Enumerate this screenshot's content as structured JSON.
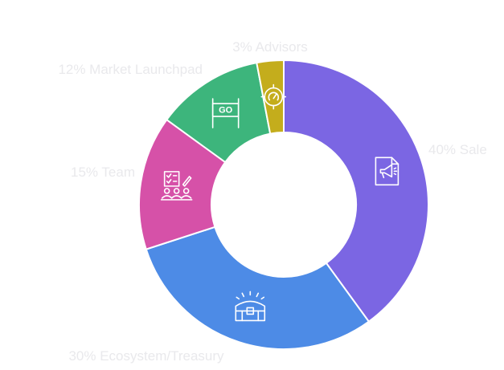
{
  "chart_data": {
    "type": "pie",
    "donut": true,
    "categories": [
      "Sale",
      "Ecosystem/Treasury",
      "Team",
      "Market Launchpad",
      "Advisors"
    ],
    "values": [
      40,
      30,
      15,
      12,
      3
    ],
    "labels": [
      "40% Sale",
      "30% Ecosystem/Treasury",
      "15% Team",
      "12% Market Launchpad",
      "3% Advisors"
    ],
    "colors": [
      "#7b66e3",
      "#4d8be6",
      "#d651a8",
      "#3db57c",
      "#c4ad1c"
    ],
    "icons": [
      "document-megaphone-icon",
      "treasure-chest-icon",
      "team-checklist-icon",
      "go-sign-icon",
      "target-gauge-icon"
    ],
    "title": "",
    "legend": "none"
  }
}
